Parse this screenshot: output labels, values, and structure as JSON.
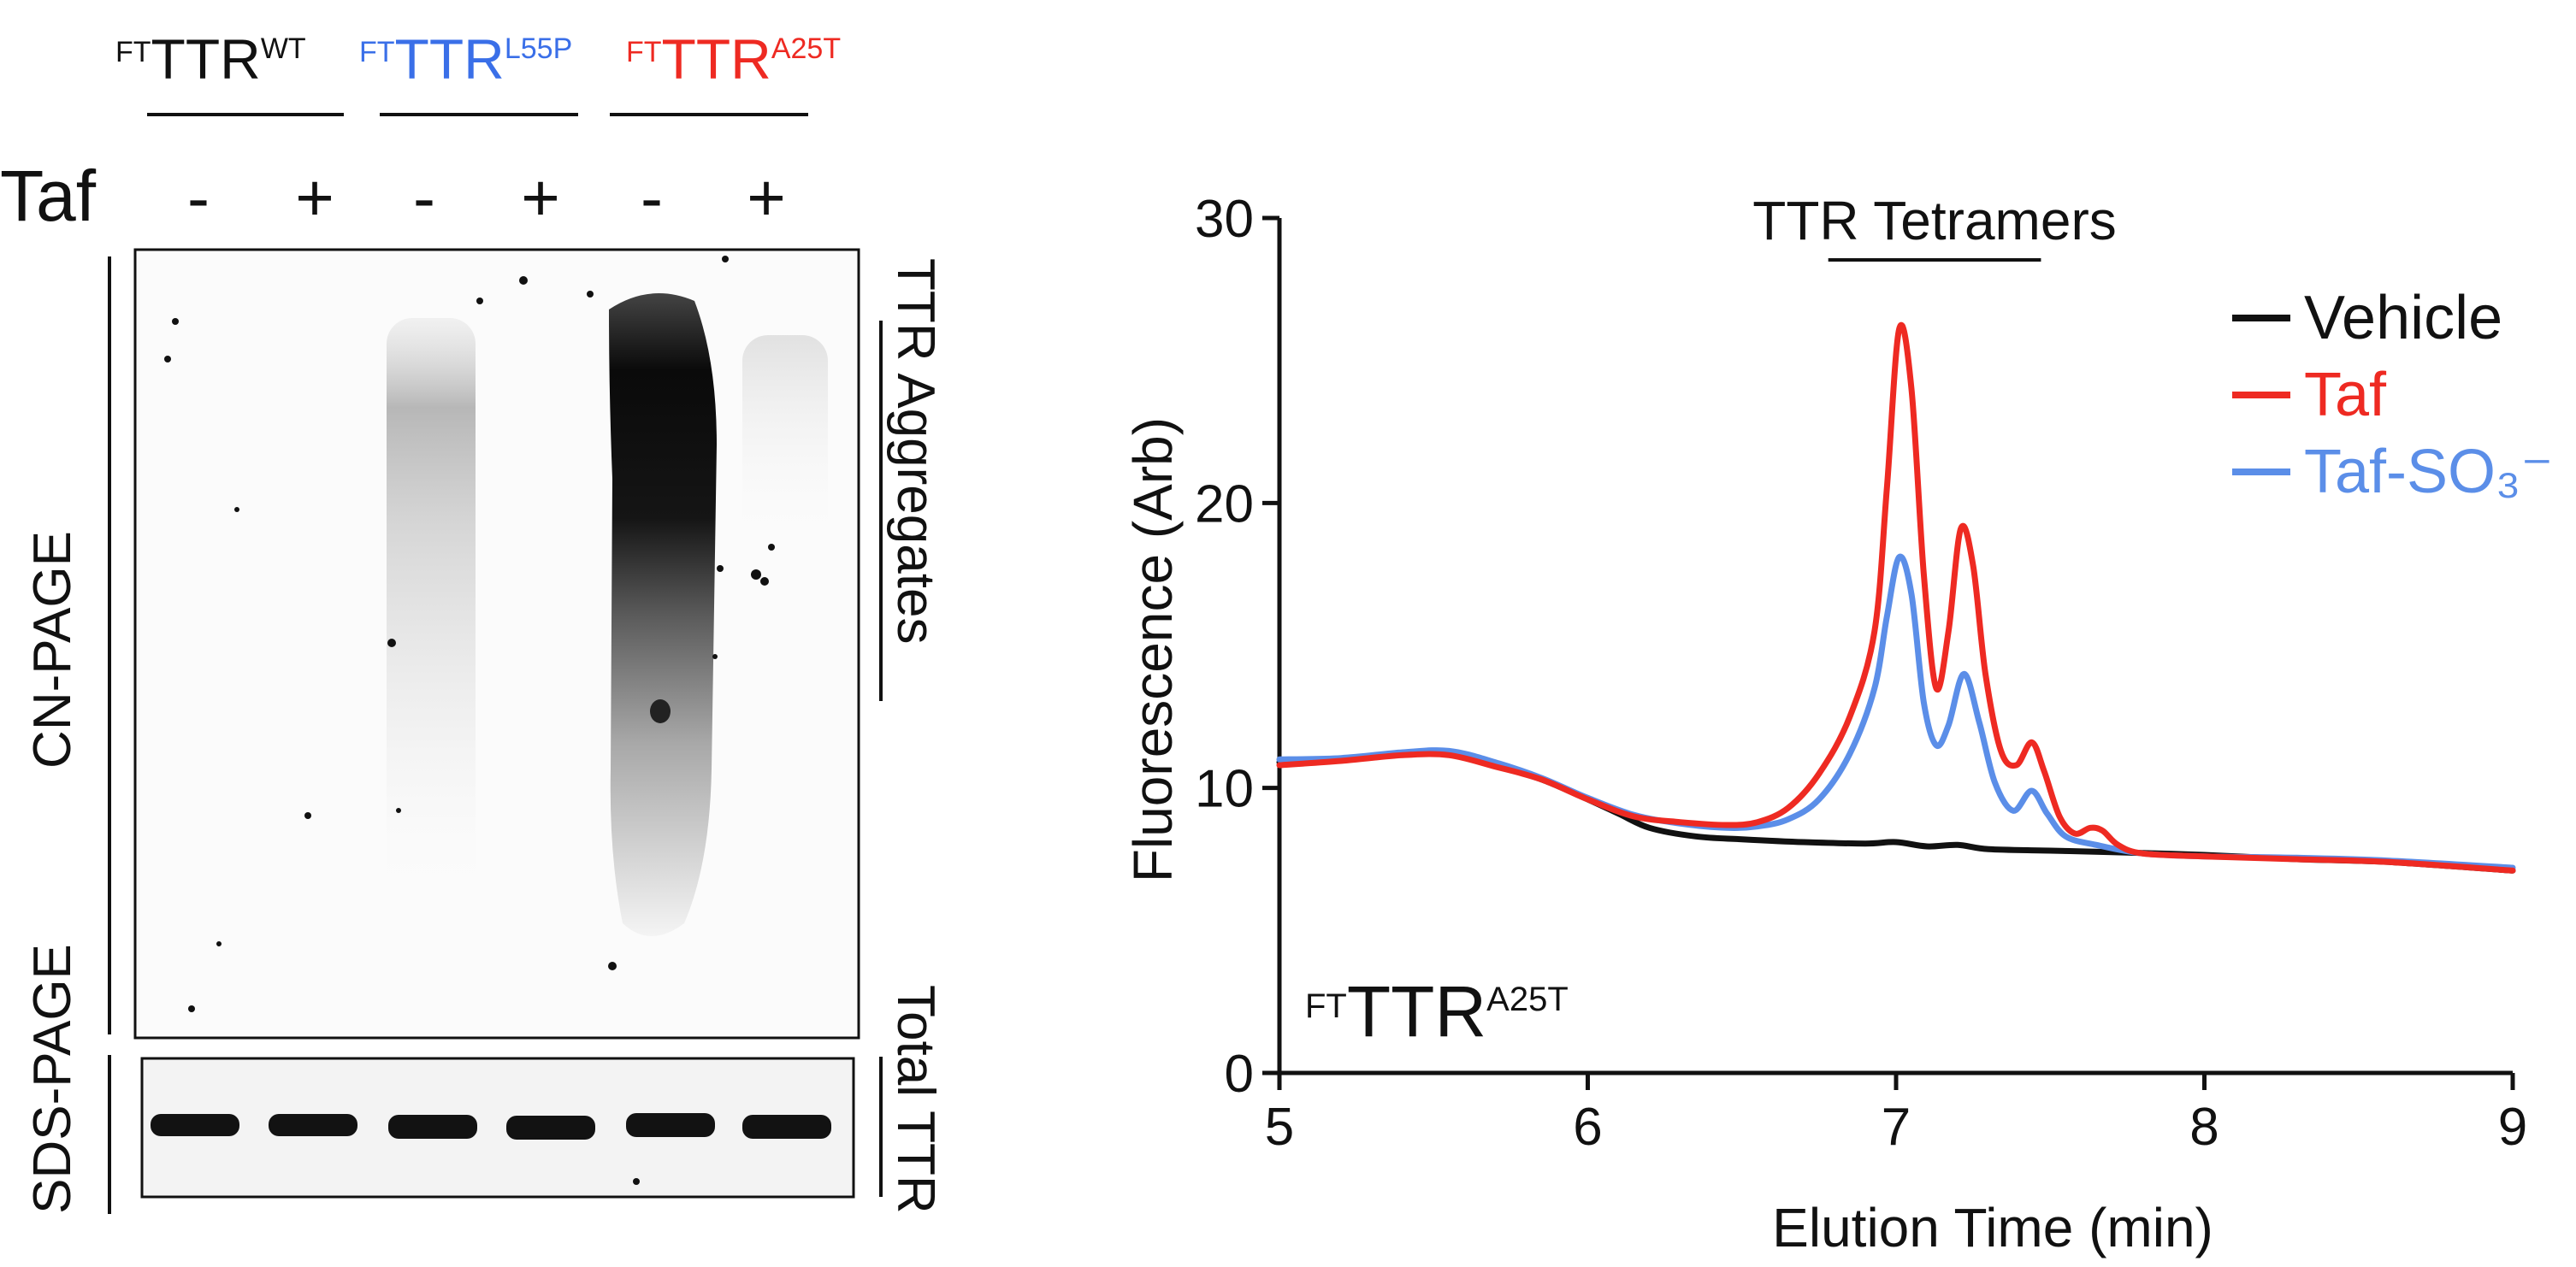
{
  "gel": {
    "conditions": [
      {
        "prefix": "FT",
        "base": "TTR",
        "sup": "WT",
        "color": "#111111"
      },
      {
        "prefix": "FT",
        "base": "TTR",
        "sup": "L55P",
        "color": "#3a6fe8"
      },
      {
        "prefix": "FT",
        "base": "TTR",
        "sup": "A25T",
        "color": "#ee2a22"
      }
    ],
    "treatment_label": "Taf",
    "lane_signs": [
      "-",
      "+",
      "-",
      "+",
      "-",
      "+"
    ],
    "left_labels": {
      "top": "CN-PAGE",
      "bottom": "SDS-PAGE"
    },
    "right_labels": {
      "top": "TTR Aggregates",
      "bottom": "Total TTR"
    }
  },
  "chart_data": {
    "type": "line",
    "xlabel": "Elution Time (min)",
    "ylabel": "Fluorescence (Arb)",
    "xlim": [
      5,
      9
    ],
    "ylim": [
      0,
      30
    ],
    "xticks": [
      5,
      6,
      7,
      8,
      9
    ],
    "yticks": [
      0,
      10,
      20,
      30
    ],
    "annotation": "TTR Tetramers",
    "annotation_range": [
      6.78,
      7.47
    ],
    "inset_label": {
      "prefix": "FT",
      "base": "TTR",
      "sup": "A25T"
    },
    "legend_position": "top-right",
    "series": [
      {
        "name": "Vehicle",
        "color": "#111111",
        "points": [
          [
            5,
            10.9
          ],
          [
            5.2,
            11.0
          ],
          [
            5.4,
            11.2
          ],
          [
            5.55,
            11.2
          ],
          [
            5.7,
            10.8
          ],
          [
            5.85,
            10.3
          ],
          [
            6.0,
            9.6
          ],
          [
            6.1,
            9.1
          ],
          [
            6.2,
            8.6
          ],
          [
            6.35,
            8.3
          ],
          [
            6.5,
            8.2
          ],
          [
            6.7,
            8.1
          ],
          [
            6.9,
            8.05
          ],
          [
            7.0,
            8.1
          ],
          [
            7.1,
            7.95
          ],
          [
            7.2,
            8.0
          ],
          [
            7.3,
            7.85
          ],
          [
            7.5,
            7.8
          ],
          [
            7.7,
            7.75
          ],
          [
            8.0,
            7.65
          ],
          [
            8.3,
            7.5
          ],
          [
            8.6,
            7.4
          ],
          [
            9.0,
            7.1
          ]
        ]
      },
      {
        "name": "Taf",
        "color": "#ee2a22",
        "points": [
          [
            5,
            10.8
          ],
          [
            5.2,
            10.95
          ],
          [
            5.4,
            11.15
          ],
          [
            5.55,
            11.15
          ],
          [
            5.7,
            10.75
          ],
          [
            5.85,
            10.3
          ],
          [
            6.0,
            9.6
          ],
          [
            6.15,
            9.0
          ],
          [
            6.3,
            8.8
          ],
          [
            6.45,
            8.7
          ],
          [
            6.55,
            8.8
          ],
          [
            6.65,
            9.3
          ],
          [
            6.75,
            10.5
          ],
          [
            6.85,
            12.5
          ],
          [
            6.93,
            15.5
          ],
          [
            6.97,
            20.5
          ],
          [
            7.01,
            26.1
          ],
          [
            7.05,
            24.0
          ],
          [
            7.09,
            17.5
          ],
          [
            7.13,
            13.5
          ],
          [
            7.17,
            15.5
          ],
          [
            7.21,
            19.1
          ],
          [
            7.25,
            17.8
          ],
          [
            7.29,
            14.0
          ],
          [
            7.34,
            11.3
          ],
          [
            7.39,
            10.8
          ],
          [
            7.44,
            11.6
          ],
          [
            7.48,
            10.6
          ],
          [
            7.53,
            9.0
          ],
          [
            7.58,
            8.4
          ],
          [
            7.63,
            8.6
          ],
          [
            7.67,
            8.5
          ],
          [
            7.72,
            8.0
          ],
          [
            7.8,
            7.7
          ],
          [
            8.0,
            7.6
          ],
          [
            8.3,
            7.5
          ],
          [
            8.6,
            7.4
          ],
          [
            9.0,
            7.1
          ]
        ]
      },
      {
        "name": "Taf-SO₃⁻",
        "color": "#5b8ee8",
        "points": [
          [
            5,
            11.0
          ],
          [
            5.2,
            11.05
          ],
          [
            5.4,
            11.25
          ],
          [
            5.55,
            11.3
          ],
          [
            5.7,
            10.9
          ],
          [
            5.85,
            10.35
          ],
          [
            6.0,
            9.65
          ],
          [
            6.15,
            9.05
          ],
          [
            6.3,
            8.75
          ],
          [
            6.45,
            8.6
          ],
          [
            6.55,
            8.65
          ],
          [
            6.65,
            8.9
          ],
          [
            6.75,
            9.6
          ],
          [
            6.85,
            11.2
          ],
          [
            6.93,
            13.5
          ],
          [
            6.97,
            16.0
          ],
          [
            7.01,
            18.1
          ],
          [
            7.05,
            16.8
          ],
          [
            7.09,
            13.0
          ],
          [
            7.13,
            11.5
          ],
          [
            7.17,
            12.2
          ],
          [
            7.22,
            14.0
          ],
          [
            7.27,
            12.3
          ],
          [
            7.32,
            10.2
          ],
          [
            7.38,
            9.2
          ],
          [
            7.44,
            9.9
          ],
          [
            7.49,
            9.1
          ],
          [
            7.55,
            8.3
          ],
          [
            7.65,
            8.0
          ],
          [
            7.8,
            7.7
          ],
          [
            8.0,
            7.6
          ],
          [
            8.3,
            7.55
          ],
          [
            8.6,
            7.45
          ],
          [
            9.0,
            7.2
          ]
        ]
      }
    ]
  }
}
